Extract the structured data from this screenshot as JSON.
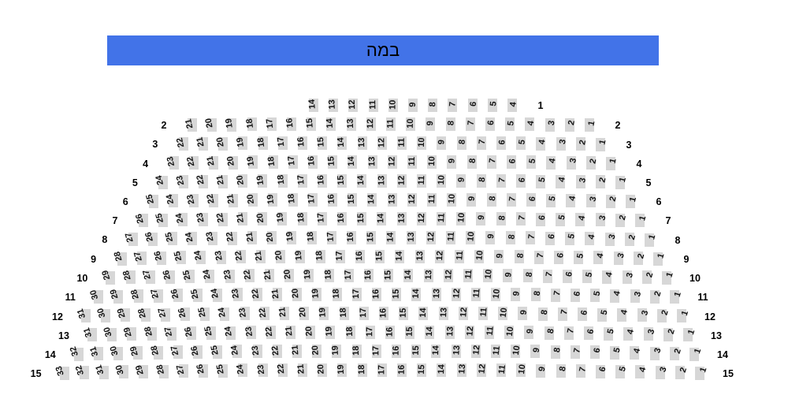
{
  "stage": {
    "label": "במה",
    "color": "#4273e8"
  },
  "colors": {
    "background": "#ffffff",
    "seat_fill": "#d7d7d7",
    "seat_text": "#141414",
    "label_text": "#000000"
  },
  "rows": [
    {
      "row": 1,
      "left_label": "",
      "right_label": "1",
      "seats": [
        14,
        13,
        12,
        11,
        10,
        9,
        8,
        7,
        6,
        5,
        4
      ]
    },
    {
      "row": 2,
      "left_label": "2",
      "right_label": "2",
      "seats": [
        21,
        20,
        19,
        18,
        17,
        16,
        15,
        14,
        13,
        12,
        11,
        10,
        9,
        8,
        7,
        6,
        5,
        4,
        3,
        2,
        1
      ]
    },
    {
      "row": 3,
      "left_label": "3",
      "right_label": "3",
      "seats": [
        22,
        21,
        20,
        19,
        18,
        17,
        16,
        15,
        14,
        13,
        12,
        11,
        10,
        9,
        8,
        7,
        6,
        5,
        4,
        3,
        2,
        1
      ]
    },
    {
      "row": 4,
      "left_label": "4",
      "right_label": "4",
      "seats": [
        23,
        22,
        21,
        20,
        19,
        18,
        17,
        16,
        15,
        14,
        13,
        12,
        11,
        10,
        9,
        8,
        7,
        6,
        5,
        4,
        3,
        2,
        1
      ]
    },
    {
      "row": 5,
      "left_label": "5",
      "right_label": "5",
      "seats": [
        24,
        23,
        22,
        21,
        20,
        19,
        18,
        17,
        16,
        15,
        14,
        13,
        12,
        11,
        10,
        9,
        8,
        7,
        6,
        5,
        4,
        3,
        2,
        1
      ]
    },
    {
      "row": 6,
      "left_label": "6",
      "right_label": "6",
      "seats": [
        25,
        24,
        23,
        22,
        21,
        20,
        19,
        18,
        17,
        16,
        15,
        14,
        13,
        12,
        11,
        10,
        9,
        8,
        7,
        6,
        5,
        4,
        3,
        2,
        1
      ]
    },
    {
      "row": 7,
      "left_label": "7",
      "right_label": "7",
      "seats": [
        26,
        25,
        24,
        23,
        22,
        21,
        20,
        19,
        18,
        17,
        16,
        15,
        14,
        13,
        12,
        11,
        10,
        9,
        8,
        7,
        6,
        5,
        4,
        3,
        2,
        1
      ]
    },
    {
      "row": 8,
      "left_label": "8",
      "right_label": "8",
      "seats": [
        27,
        26,
        25,
        24,
        23,
        22,
        21,
        20,
        19,
        18,
        17,
        16,
        15,
        14,
        13,
        12,
        11,
        10,
        9,
        8,
        7,
        6,
        5,
        4,
        3,
        2,
        1
      ]
    },
    {
      "row": 9,
      "left_label": "9",
      "right_label": "9",
      "seats": [
        28,
        27,
        26,
        25,
        24,
        23,
        22,
        21,
        20,
        19,
        18,
        17,
        16,
        15,
        14,
        13,
        12,
        11,
        10,
        9,
        8,
        7,
        6,
        5,
        4,
        3,
        2,
        1
      ]
    },
    {
      "row": 10,
      "left_label": "10",
      "right_label": "10",
      "seats": [
        29,
        28,
        27,
        26,
        25,
        24,
        23,
        22,
        21,
        20,
        19,
        18,
        17,
        16,
        15,
        14,
        13,
        12,
        11,
        10,
        9,
        8,
        7,
        6,
        5,
        4,
        3,
        2,
        1
      ]
    },
    {
      "row": 11,
      "left_label": "11",
      "right_label": "11",
      "seats": [
        30,
        29,
        28,
        27,
        26,
        25,
        24,
        23,
        22,
        21,
        20,
        19,
        18,
        17,
        16,
        15,
        14,
        13,
        12,
        11,
        10,
        9,
        8,
        7,
        6,
        5,
        4,
        3,
        2,
        1
      ]
    },
    {
      "row": 12,
      "left_label": "12",
      "right_label": "12",
      "seats": [
        31,
        30,
        29,
        28,
        27,
        26,
        25,
        24,
        23,
        22,
        21,
        20,
        19,
        18,
        17,
        16,
        15,
        14,
        13,
        12,
        11,
        10,
        9,
        8,
        7,
        6,
        5,
        4,
        3,
        2,
        1
      ]
    },
    {
      "row": 13,
      "left_label": "13",
      "right_label": "13",
      "seats": [
        31,
        30,
        29,
        28,
        27,
        26,
        25,
        24,
        23,
        22,
        21,
        20,
        19,
        18,
        17,
        16,
        15,
        14,
        13,
        12,
        11,
        10,
        9,
        8,
        7,
        6,
        5,
        4,
        3,
        2,
        1
      ]
    },
    {
      "row": 14,
      "left_label": "14",
      "right_label": "14",
      "seats": [
        32,
        31,
        30,
        29,
        28,
        27,
        26,
        25,
        24,
        23,
        22,
        21,
        20,
        19,
        18,
        17,
        16,
        15,
        14,
        13,
        12,
        11,
        10,
        9,
        8,
        7,
        6,
        5,
        4,
        3,
        2,
        1
      ]
    },
    {
      "row": 15,
      "left_label": "15",
      "right_label": "15",
      "seats": [
        33,
        32,
        31,
        30,
        29,
        28,
        27,
        26,
        25,
        24,
        23,
        22,
        21,
        20,
        19,
        18,
        17,
        16,
        15,
        14,
        13,
        12,
        11,
        10,
        9,
        8,
        7,
        6,
        5,
        4,
        3,
        2,
        1
      ]
    }
  ]
}
